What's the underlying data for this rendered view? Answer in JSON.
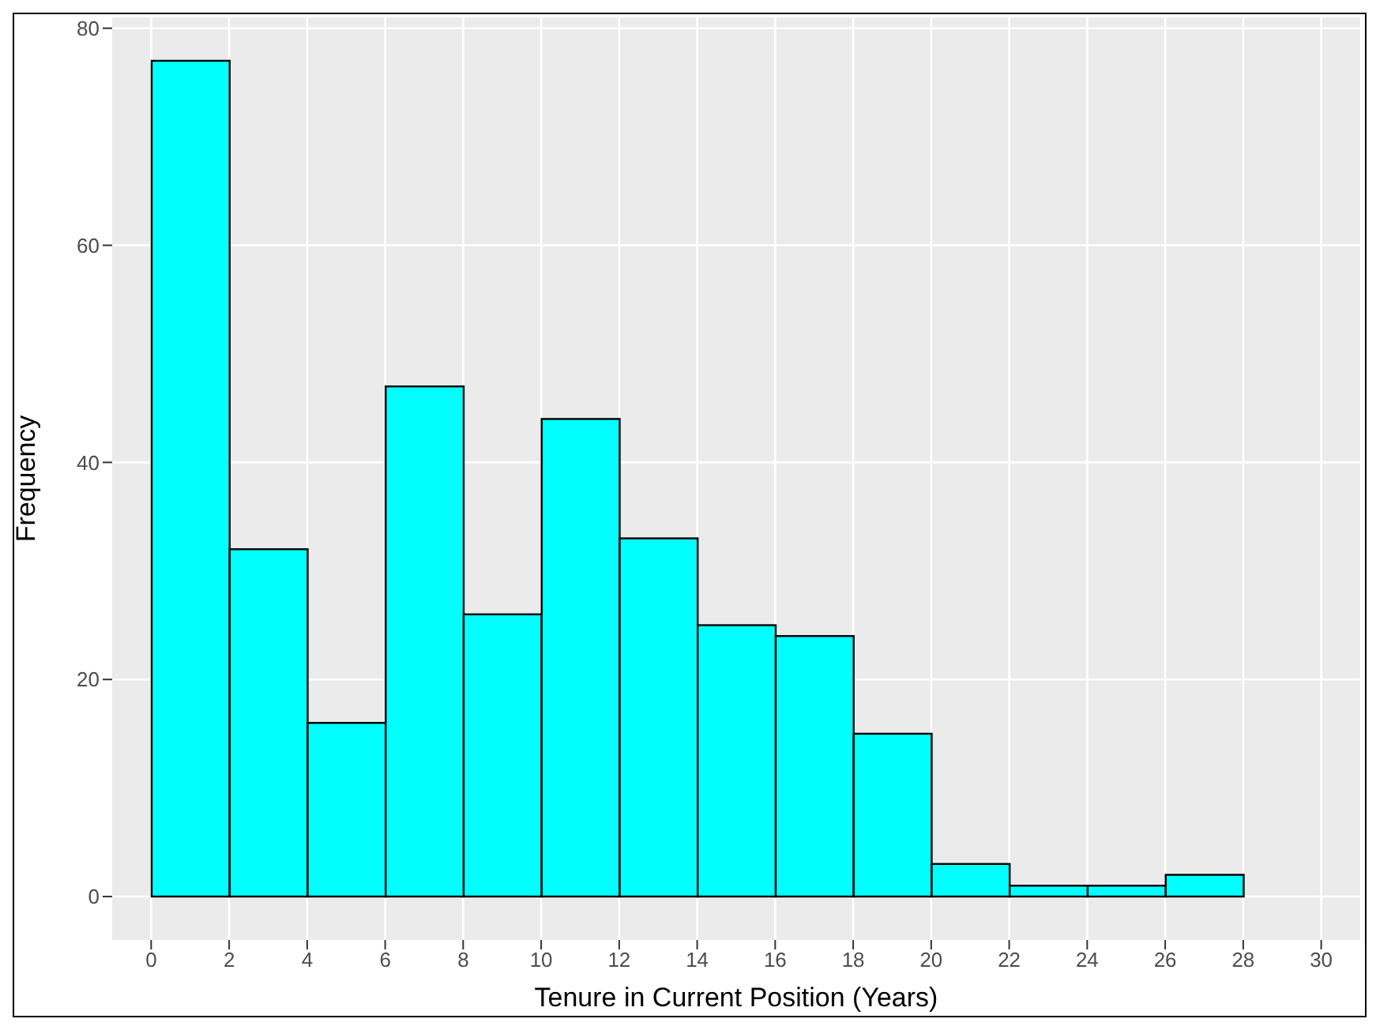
{
  "chart_data": {
    "type": "histogram",
    "xlabel": "Tenure in Current Position (Years)",
    "ylabel": "Frequency",
    "bins": [
      0,
      2,
      4,
      6,
      8,
      10,
      12,
      14,
      16,
      18,
      20,
      22,
      24,
      26,
      28,
      30
    ],
    "values": [
      77,
      32,
      16,
      47,
      26,
      44,
      33,
      25,
      24,
      15,
      3,
      1,
      1,
      2,
      0
    ],
    "color": "#00ffff",
    "xlim": [
      -1,
      31
    ],
    "xticks": [
      0,
      2,
      4,
      6,
      8,
      10,
      12,
      14,
      16,
      18,
      20,
      22,
      24,
      26,
      28,
      30
    ],
    "ylim": [
      -4,
      81
    ],
    "yticks": [
      0,
      20,
      40,
      60,
      80
    ],
    "grid": true
  }
}
